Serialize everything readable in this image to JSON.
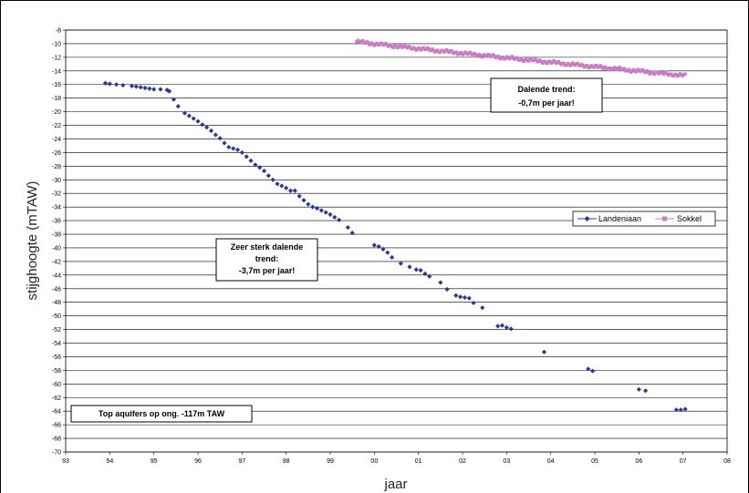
{
  "chart_data": {
    "type": "scatter",
    "xlabel": "jaar",
    "ylabel": "stijghoogte (mTAW)",
    "x_ticks": [
      "93",
      "94",
      "95",
      "96",
      "97",
      "98",
      "99",
      "00",
      "01",
      "02",
      "03",
      "04",
      "05",
      "06",
      "07",
      "08"
    ],
    "ylim": [
      -70,
      -8
    ],
    "y_step": 2,
    "grid": "horizontal",
    "legend_position": "right",
    "series": [
      {
        "name": "Landeniaan",
        "color": "#2b3990",
        "marker": "diamond",
        "points": [
          [
            93.9,
            -15.8
          ],
          [
            94.0,
            -15.9
          ],
          [
            94.15,
            -16.0
          ],
          [
            94.3,
            -16.1
          ],
          [
            94.5,
            -16.2
          ],
          [
            94.6,
            -16.3
          ],
          [
            94.7,
            -16.4
          ],
          [
            94.8,
            -16.5
          ],
          [
            94.9,
            -16.6
          ],
          [
            95.0,
            -16.7
          ],
          [
            95.15,
            -16.7
          ],
          [
            95.3,
            -16.8
          ],
          [
            95.35,
            -17.0
          ],
          [
            95.45,
            -18.2
          ],
          [
            95.55,
            -19.2
          ],
          [
            95.7,
            -20.2
          ],
          [
            95.8,
            -20.6
          ],
          [
            95.9,
            -21.0
          ],
          [
            96.0,
            -21.4
          ],
          [
            96.1,
            -21.9
          ],
          [
            96.2,
            -22.3
          ],
          [
            96.3,
            -22.8
          ],
          [
            96.4,
            -23.4
          ],
          [
            96.5,
            -23.9
          ],
          [
            96.6,
            -24.6
          ],
          [
            96.7,
            -25.2
          ],
          [
            96.8,
            -25.4
          ],
          [
            96.9,
            -25.6
          ],
          [
            97.0,
            -26.0
          ],
          [
            97.1,
            -26.6
          ],
          [
            97.2,
            -27.2
          ],
          [
            97.3,
            -27.8
          ],
          [
            97.4,
            -28.2
          ],
          [
            97.5,
            -28.7
          ],
          [
            97.6,
            -29.4
          ],
          [
            97.7,
            -30.0
          ],
          [
            97.8,
            -30.6
          ],
          [
            97.9,
            -30.9
          ],
          [
            98.0,
            -31.2
          ],
          [
            98.1,
            -31.6
          ],
          [
            98.2,
            -31.6
          ],
          [
            98.3,
            -32.4
          ],
          [
            98.4,
            -33.0
          ],
          [
            98.5,
            -33.6
          ],
          [
            98.6,
            -34.0
          ],
          [
            98.7,
            -34.2
          ],
          [
            98.8,
            -34.5
          ],
          [
            98.9,
            -34.8
          ],
          [
            99.0,
            -35.1
          ],
          [
            99.1,
            -35.5
          ],
          [
            99.2,
            -35.9
          ],
          [
            99.4,
            -37.0
          ],
          [
            99.5,
            -37.8
          ],
          [
            100.0,
            -39.6
          ],
          [
            100.1,
            -39.8
          ],
          [
            100.2,
            -40.2
          ],
          [
            100.3,
            -40.7
          ],
          [
            100.4,
            -41.4
          ],
          [
            100.6,
            -42.3
          ],
          [
            100.8,
            -42.8
          ],
          [
            100.95,
            -43.2
          ],
          [
            101.05,
            -43.3
          ],
          [
            101.15,
            -43.8
          ],
          [
            101.25,
            -44.2
          ],
          [
            101.5,
            -45.1
          ],
          [
            101.65,
            -46.1
          ],
          [
            101.85,
            -47.0
          ],
          [
            101.95,
            -47.2
          ],
          [
            102.05,
            -47.3
          ],
          [
            102.15,
            -47.4
          ],
          [
            102.25,
            -48.1
          ],
          [
            102.45,
            -48.8
          ],
          [
            102.8,
            -51.5
          ],
          [
            102.9,
            -51.4
          ],
          [
            103.0,
            -51.7
          ],
          [
            103.1,
            -51.9
          ],
          [
            103.85,
            -55.3
          ],
          [
            104.85,
            -57.8
          ],
          [
            104.95,
            -58.1
          ],
          [
            106.0,
            -60.8
          ],
          [
            106.15,
            -61.0
          ],
          [
            106.85,
            -63.8
          ],
          [
            106.95,
            -63.8
          ],
          [
            107.05,
            -63.7
          ]
        ]
      },
      {
        "name": "Sokkel",
        "color": "#c77dc2",
        "marker": "square",
        "start_year": 99.6,
        "end_year": 107.05,
        "start_value": -9.7,
        "end_value": -14.7
      }
    ]
  },
  "annotations": {
    "sokkel_note_lines": [
      "Dalende trend:",
      "-0,7m per jaar!"
    ],
    "landeniaan_note_lines": [
      "Zeer sterk dalende",
      "trend:",
      "-3,7m per jaar!"
    ],
    "aquifer_note": "Top aquifers op ong.  -117m TAW"
  }
}
